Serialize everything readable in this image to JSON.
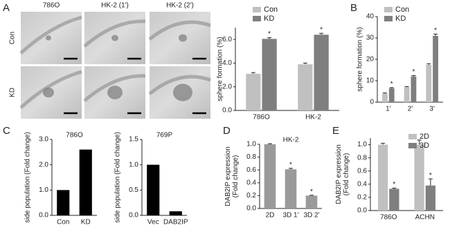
{
  "figure": {
    "panel_labels": [
      "A",
      "B",
      "C",
      "D",
      "E"
    ],
    "micrographs": {
      "columns": [
        "786O",
        "HK-2 (1')",
        "HK-2 (2')"
      ],
      "rows": [
        "Con",
        "KD"
      ]
    }
  },
  "chart_data": [
    {
      "type": "bar",
      "ylabel": [
        "sphere formation (%)"
      ],
      "categories": [
        "786O",
        "HK-2"
      ],
      "ylim": [
        0,
        7
      ],
      "yticks": [
        {
          "value": 0,
          "label": "0.0"
        },
        {
          "value": 2,
          "label": "2.0"
        },
        {
          "value": 4,
          "label": "4.0"
        },
        {
          "value": 6,
          "label": "6.0"
        }
      ],
      "series": [
        {
          "name": "Con",
          "color": "#c0c0c0",
          "values": [
            3.1,
            3.9
          ],
          "errors": [
            0.1,
            0.1
          ]
        },
        {
          "name": "KD",
          "color": "#7f7f7f",
          "values": [
            6.05,
            6.4
          ],
          "errors": [
            0.1,
            0.12
          ]
        }
      ],
      "annotations": [
        {
          "text": "*",
          "series": "KD",
          "category": "786O"
        },
        {
          "text": "*",
          "series": "KD",
          "category": "HK-2"
        }
      ]
    },
    {
      "type": "bar",
      "ylabel": [
        "sphere formation (%)"
      ],
      "categories": [
        "1'",
        "2'",
        "3'"
      ],
      "ylim": [
        0,
        40
      ],
      "yticks": [
        0,
        10,
        20,
        30,
        40
      ],
      "series": [
        {
          "name": "Con",
          "color": "#c0c0c0",
          "values": [
            4,
            7,
            17.5
          ],
          "errors": [
            0.3,
            0.3,
            0.5
          ]
        },
        {
          "name": "KD",
          "color": "#7f7f7f",
          "values": [
            6.5,
            12,
            31
          ],
          "errors": [
            0.3,
            0.4,
            0.8
          ]
        }
      ],
      "annotations": [
        {
          "text": "*",
          "series": "KD",
          "category": "1'"
        },
        {
          "text": "*",
          "series": "KD",
          "category": "2'"
        },
        {
          "text": "*",
          "series": "KD",
          "category": "3'"
        }
      ]
    },
    {
      "type": "bar",
      "title": "786O",
      "ylabel": [
        "side population (Fold change)"
      ],
      "categories": [
        "Con",
        "KD"
      ],
      "ylim": [
        0,
        3
      ],
      "yticks": [
        {
          "value": 0,
          "label": "0.0"
        },
        {
          "value": 1,
          "label": "1.0"
        },
        {
          "value": 2,
          "label": "2.0"
        },
        {
          "value": 3,
          "label": "3.0"
        }
      ],
      "values": [
        1.0,
        2.6
      ],
      "color": "#000000"
    },
    {
      "type": "bar",
      "title": "769P",
      "ylabel": [
        "side population (Fold change)"
      ],
      "categories": [
        "Vec",
        "DAB2IP"
      ],
      "ylim": [
        0,
        1.5
      ],
      "yticks": [
        {
          "value": 0,
          "label": "0.0"
        },
        0.5,
        {
          "value": 1,
          "label": "1.0"
        },
        1.5
      ],
      "values": [
        1.0,
        0.08
      ],
      "color": "#000000"
    },
    {
      "type": "bar",
      "title": "HK-2",
      "ylabel": [
        "DAB2IP expression",
        "(Fold change)"
      ],
      "categories": [
        "2D",
        "3D 1'",
        "3D 2'"
      ],
      "ylim": [
        0,
        1
      ],
      "yticks": [
        {
          "value": 0,
          "label": "0.0"
        },
        0.2,
        0.4,
        0.6,
        0.8,
        {
          "value": 1,
          "label": "1.0"
        }
      ],
      "values": [
        1.0,
        0.61,
        0.2
      ],
      "errors": [
        0.01,
        0.015,
        0.005
      ],
      "color": "#9a9a9a",
      "annotations": [
        {
          "text": "*",
          "category": "3D 1'"
        },
        {
          "text": "*",
          "category": "3D 2'"
        }
      ]
    },
    {
      "type": "bar",
      "ylabel": [
        "DAB2IP expression",
        "(Fold change)"
      ],
      "categories": [
        "786O",
        "ACHN"
      ],
      "ylim": [
        0,
        1.1
      ],
      "yticks": [
        {
          "value": 0,
          "label": "0.0"
        },
        0.2,
        0.4,
        0.6,
        0.8,
        {
          "value": 1,
          "label": "1.0"
        }
      ],
      "series": [
        {
          "name": "2D",
          "color": "#c0c0c0",
          "values": [
            1.0,
            1.0
          ],
          "errors": [
            0.02,
            0.07
          ]
        },
        {
          "name": "3D",
          "color": "#7f7f7f",
          "values": [
            0.33,
            0.38
          ],
          "errors": [
            0.01,
            0.1
          ]
        }
      ],
      "annotations": [
        {
          "text": "*",
          "series": "3D",
          "category": "786O"
        },
        {
          "text": "*",
          "series": "3D",
          "category": "ACHN"
        }
      ]
    }
  ]
}
